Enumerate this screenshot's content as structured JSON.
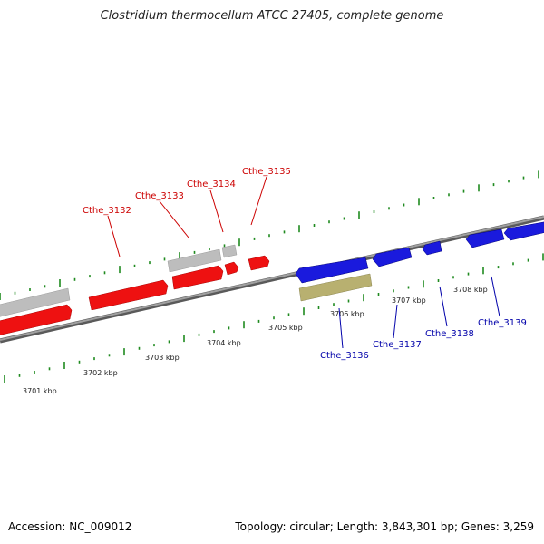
{
  "title": "Clostridium thermocellum ATCC 27405, complete genome",
  "footer": {
    "accession": "Accession: NC_009012",
    "stats": "Topology: circular; Length: 3,843,301 bp; Genes: 3,259"
  },
  "colors": {
    "forward_gene": "#ee1111",
    "reverse_gene": "#1a1add",
    "gray_feature": "#bdbdbd",
    "olive_feature": "#b8b070",
    "tick": "#1f8a1f",
    "backbone": "#8a8a8a",
    "forward_label": "#cc0000",
    "reverse_label": "#0000aa"
  },
  "kbp_labels": [
    "3701 kbp",
    "3702 kbp",
    "3703 kbp",
    "3704 kbp",
    "3705 kbp",
    "3706 kbp",
    "3707 kbp",
    "3708 kbp"
  ],
  "gene_labels": {
    "forward": [
      "Cthe_3132",
      "Cthe_3133",
      "Cthe_3134",
      "Cthe_3135"
    ],
    "reverse": [
      "Cthe_3136",
      "Cthe_3137",
      "Cthe_3138",
      "Cthe_3139"
    ]
  }
}
